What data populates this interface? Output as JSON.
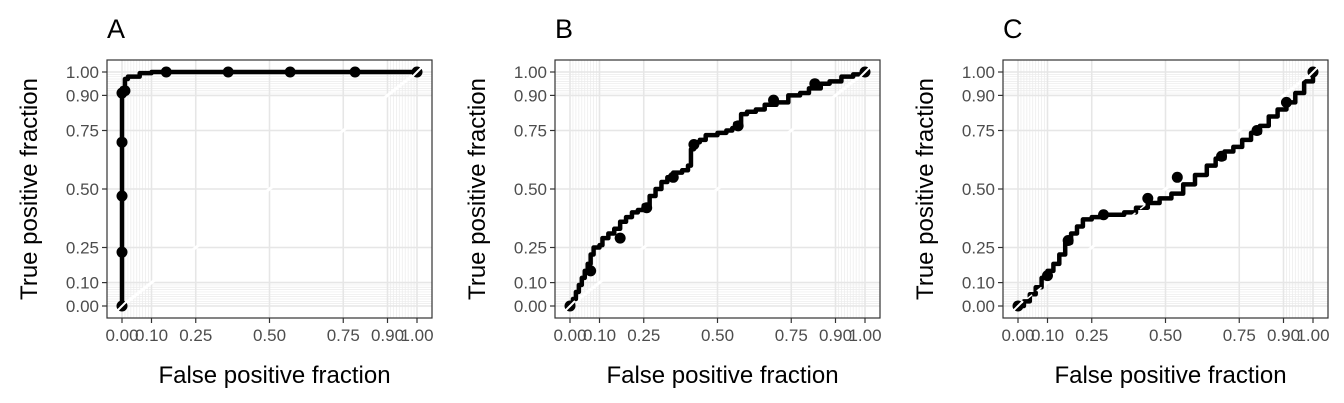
{
  "chart_data": [
    {
      "type": "line",
      "panel_label": "A",
      "xlabel": "False positive fraction",
      "ylabel": "True positive fraction",
      "xlim": [
        0,
        1
      ],
      "ylim": [
        0,
        1
      ],
      "grid": true,
      "xticks": [
        0,
        0.1,
        0.25,
        0.5,
        0.75,
        0.9,
        1
      ],
      "xtick_labels": [
        "0.00",
        "0.10",
        "0.25",
        "0.50",
        "0.75",
        "0.90",
        "1.00"
      ],
      "yticks": [
        0,
        0.1,
        0.25,
        0.5,
        0.75,
        0.9,
        1
      ],
      "ytick_labels": [
        "0.00",
        "0.10",
        "0.25",
        "0.50",
        "0.75",
        "0.90",
        "1.00"
      ],
      "roc_curve": {
        "x": [
          0,
          0,
          0,
          0,
          0,
          0,
          0,
          0.01,
          0.01,
          0.02,
          0.02,
          0.06,
          0.06,
          0.1,
          0.1,
          1
        ],
        "y": [
          0,
          0.23,
          0.47,
          0.7,
          0.8,
          0.91,
          0.93,
          0.93,
          0.97,
          0.97,
          0.98,
          0.98,
          0.995,
          0.995,
          1,
          1
        ]
      },
      "cutoff_points": {
        "x": [
          0,
          0,
          0,
          0,
          0,
          0.01,
          0.15,
          0.36,
          0.57,
          0.79,
          1
        ],
        "y": [
          0,
          0.23,
          0.47,
          0.7,
          0.91,
          0.92,
          1,
          1,
          1,
          1,
          1
        ]
      }
    },
    {
      "type": "line",
      "panel_label": "B",
      "xlabel": "False positive fraction",
      "ylabel": "True positive fraction",
      "xlim": [
        0,
        1
      ],
      "ylim": [
        0,
        1
      ],
      "grid": true,
      "xticks": [
        0,
        0.1,
        0.25,
        0.5,
        0.75,
        0.9,
        1
      ],
      "xtick_labels": [
        "0.00",
        "0.10",
        "0.25",
        "0.50",
        "0.75",
        "0.90",
        "1.00"
      ],
      "yticks": [
        0,
        0.1,
        0.25,
        0.5,
        0.75,
        0.9,
        1
      ],
      "ytick_labels": [
        "0.00",
        "0.10",
        "0.25",
        "0.50",
        "0.75",
        "0.90",
        "1.00"
      ],
      "roc_curve": {
        "x": [
          0,
          0.01,
          0.02,
          0.03,
          0.04,
          0.05,
          0.06,
          0.07,
          0.08,
          0.1,
          0.11,
          0.13,
          0.15,
          0.17,
          0.19,
          0.21,
          0.23,
          0.25,
          0.27,
          0.29,
          0.31,
          0.33,
          0.35,
          0.38,
          0.4,
          0.41,
          0.42,
          0.44,
          0.46,
          0.5,
          0.53,
          0.55,
          0.56,
          0.58,
          0.6,
          0.63,
          0.66,
          0.7,
          0.74,
          0.78,
          0.81,
          0.85,
          0.88,
          0.92,
          0.96,
          1
        ],
        "y": [
          0,
          0.03,
          0.06,
          0.09,
          0.12,
          0.15,
          0.18,
          0.22,
          0.25,
          0.26,
          0.29,
          0.31,
          0.33,
          0.36,
          0.38,
          0.4,
          0.41,
          0.43,
          0.47,
          0.5,
          0.53,
          0.55,
          0.57,
          0.58,
          0.6,
          0.67,
          0.7,
          0.71,
          0.73,
          0.74,
          0.75,
          0.76,
          0.78,
          0.82,
          0.83,
          0.84,
          0.86,
          0.87,
          0.9,
          0.91,
          0.93,
          0.95,
          0.96,
          0.98,
          0.99,
          1
        ]
      },
      "cutoff_points": {
        "x": [
          0,
          0.07,
          0.17,
          0.26,
          0.35,
          0.42,
          0.57,
          0.69,
          0.83,
          1
        ],
        "y": [
          0,
          0.15,
          0.29,
          0.42,
          0.55,
          0.69,
          0.77,
          0.88,
          0.95,
          1
        ]
      }
    },
    {
      "type": "line",
      "panel_label": "C",
      "xlabel": "False positive fraction",
      "ylabel": "True positive fraction",
      "xlim": [
        0,
        1
      ],
      "ylim": [
        0,
        1
      ],
      "grid": true,
      "xticks": [
        0,
        0.1,
        0.25,
        0.5,
        0.75,
        0.9,
        1
      ],
      "xtick_labels": [
        "0.00",
        "0.10",
        "0.25",
        "0.50",
        "0.75",
        "0.90",
        "1.00"
      ],
      "yticks": [
        0,
        0.1,
        0.25,
        0.5,
        0.75,
        0.9,
        1
      ],
      "ytick_labels": [
        "0.00",
        "0.10",
        "0.25",
        "0.50",
        "0.75",
        "0.90",
        "1.00"
      ],
      "roc_curve": {
        "x": [
          0,
          0.02,
          0.04,
          0.06,
          0.08,
          0.1,
          0.12,
          0.14,
          0.16,
          0.18,
          0.2,
          0.22,
          0.25,
          0.28,
          0.32,
          0.36,
          0.4,
          0.44,
          0.48,
          0.52,
          0.56,
          0.6,
          0.64,
          0.67,
          0.7,
          0.73,
          0.76,
          0.79,
          0.82,
          0.85,
          0.88,
          0.91,
          0.94,
          0.97,
          1
        ],
        "y": [
          0,
          0.02,
          0.05,
          0.08,
          0.12,
          0.15,
          0.18,
          0.22,
          0.27,
          0.31,
          0.34,
          0.37,
          0.38,
          0.39,
          0.39,
          0.4,
          0.42,
          0.44,
          0.46,
          0.48,
          0.52,
          0.56,
          0.6,
          0.63,
          0.66,
          0.68,
          0.71,
          0.74,
          0.77,
          0.81,
          0.84,
          0.87,
          0.91,
          0.96,
          1
        ]
      },
      "cutoff_points": {
        "x": [
          0,
          0.1,
          0.17,
          0.29,
          0.44,
          0.54,
          0.69,
          0.81,
          0.91,
          1
        ],
        "y": [
          0,
          0.13,
          0.28,
          0.39,
          0.46,
          0.55,
          0.64,
          0.75,
          0.87,
          1
        ]
      }
    }
  ]
}
